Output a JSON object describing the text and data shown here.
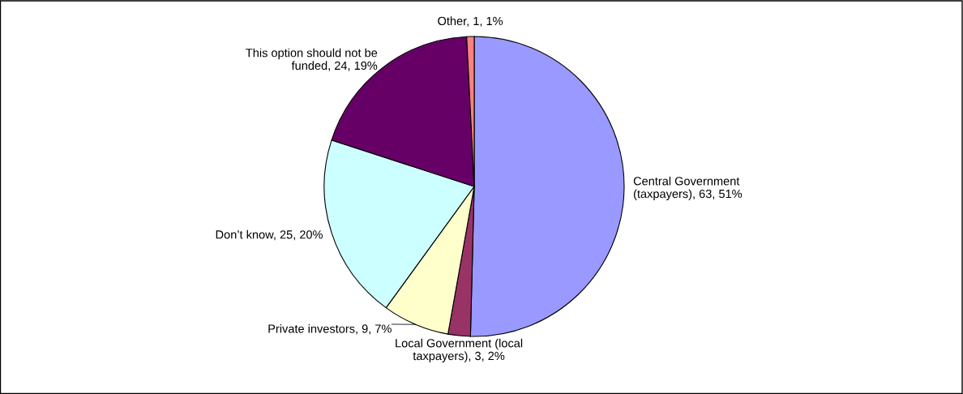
{
  "chart_data": {
    "type": "pie",
    "categories": [
      "Central Government\n(taxpayers)",
      "Local Government (local\ntaxpayers)",
      "Private investors",
      "Don’t know",
      "This option should not be\nfunded",
      "Other"
    ],
    "values": [
      63,
      3,
      9,
      25,
      24,
      1
    ],
    "value_labels": [
      "63, 51%",
      "3, 2%",
      "9, 7%",
      "25, 20%",
      "24, 19%",
      "1, 1%"
    ],
    "colors": [
      "#9999ff",
      "#993366",
      "#ffffcc",
      "#ccffff",
      "#660066",
      "#ff8080"
    ],
    "legend": false
  }
}
